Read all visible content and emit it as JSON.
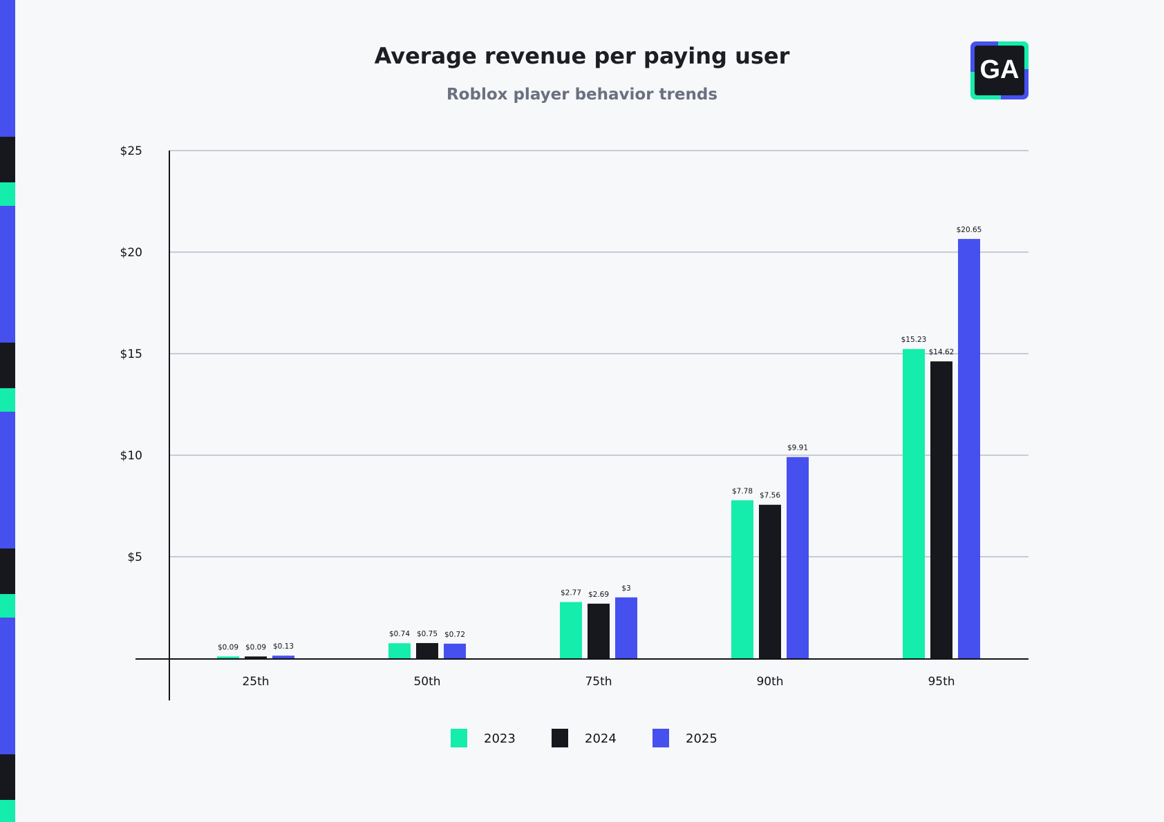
{
  "colors": {
    "background": "#f6f8fa",
    "green": "#14edac",
    "black": "#17181e",
    "blue": "#4650ee",
    "gridline": "#b8bccb",
    "axis": "#111318"
  },
  "left_strip": {
    "pattern": [
      "blue",
      "black",
      "green",
      "blue",
      "black",
      "green",
      "blue",
      "black",
      "green",
      "blue",
      "black",
      "green"
    ]
  },
  "logo": {
    "text": "GA",
    "icon": "ga-logo-icon"
  },
  "chart_data": {
    "type": "bar",
    "title": "Average revenue per paying user",
    "subtitle": "Roblox player behavior trends",
    "xlabel": "",
    "ylabel": "",
    "categories": [
      "25th",
      "50th",
      "75th",
      "90th",
      "95th"
    ],
    "ylim": [
      0,
      25
    ],
    "yticks": [
      5,
      10,
      15,
      20,
      25
    ],
    "ytick_labels": [
      "$5",
      "$10",
      "$15",
      "$20",
      "$25"
    ],
    "grid": true,
    "legend_position": "bottom-center",
    "series": [
      {
        "name": "2023",
        "color": "#14edac",
        "values": [
          0.09,
          0.74,
          2.77,
          7.78,
          15.23
        ],
        "labels": [
          "$0.09",
          "$0.74",
          "$2.77",
          "$7.78",
          "$15.23"
        ]
      },
      {
        "name": "2024",
        "color": "#17181e",
        "values": [
          0.09,
          0.75,
          2.69,
          7.56,
          14.62
        ],
        "labels": [
          "$0.09",
          "$0.75",
          "$2.69",
          "$7.56",
          "$14.62"
        ]
      },
      {
        "name": "2025",
        "color": "#4650ee",
        "values": [
          0.13,
          0.72,
          3,
          9.91,
          20.65
        ],
        "labels": [
          "$0.13",
          "$0.72",
          "$3",
          "$9.91",
          "$20.65"
        ]
      }
    ]
  }
}
